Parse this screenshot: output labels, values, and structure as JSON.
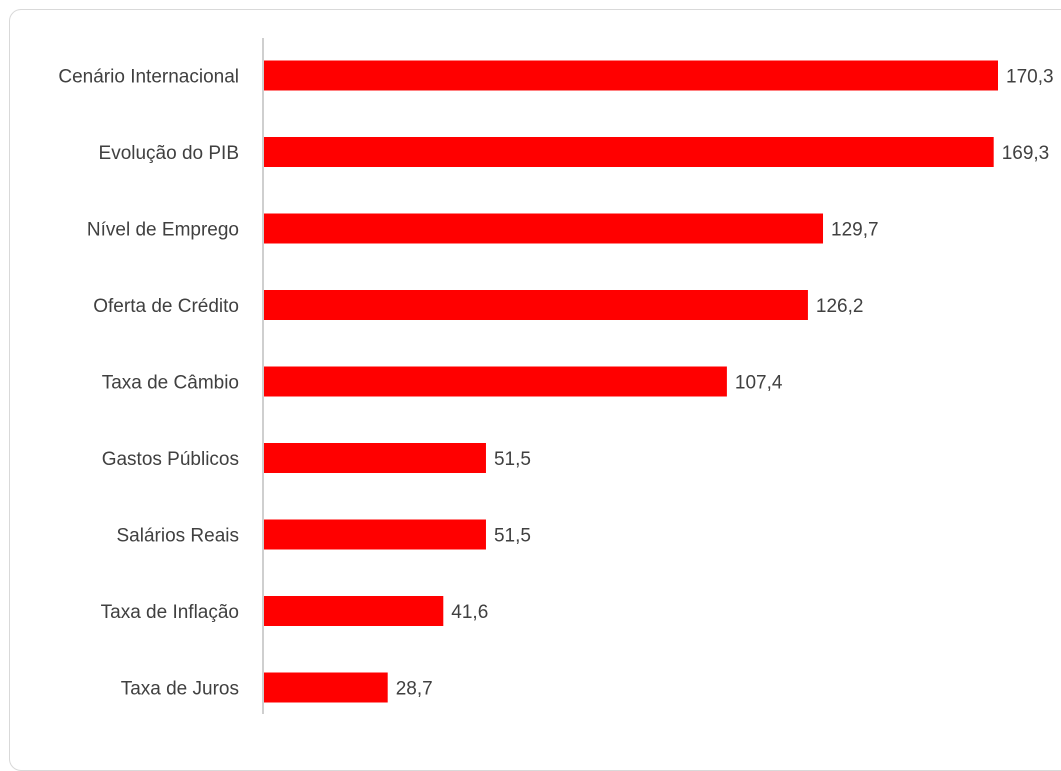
{
  "chart_data": {
    "type": "bar",
    "orientation": "horizontal",
    "categories": [
      "Cenário Internacional",
      "Evolução do PIB",
      "Nível de Emprego",
      "Oferta de Crédito",
      "Taxa de Câmbio",
      "Gastos Públicos",
      "Salários Reais",
      "Taxa de Inflação",
      "Taxa de Juros"
    ],
    "values": [
      170.3,
      169.3,
      129.7,
      126.2,
      107.4,
      51.5,
      51.5,
      41.6,
      28.7
    ],
    "value_labels": [
      "170,3",
      "169,3",
      "129,7",
      "126,2",
      "107,4",
      "51,5",
      "51,5",
      "41,6",
      "28,7"
    ],
    "xlim": [
      0,
      170.3
    ],
    "bar_color": "#ff0000",
    "axis_color": "#bfbfbf",
    "grid": false,
    "legend": false
  }
}
